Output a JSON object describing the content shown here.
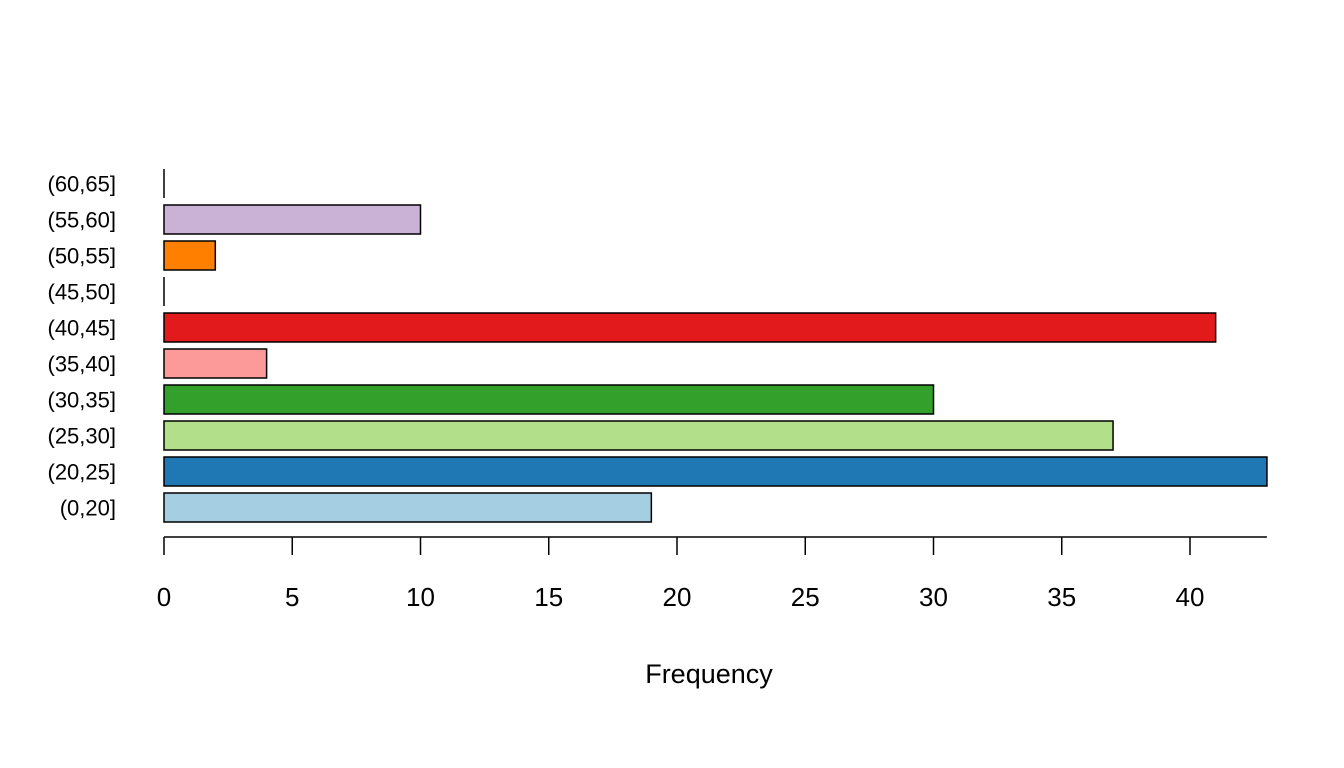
{
  "chart_data": {
    "type": "bar",
    "orientation": "horizontal",
    "title": "",
    "xlabel": "Frequency",
    "ylabel": "",
    "categories": [
      "(0,20]",
      "(20,25]",
      "(25,30]",
      "(30,35]",
      "(35,40]",
      "(40,45]",
      "(45,50]",
      "(50,55]",
      "(55,60]",
      "(60,65]"
    ],
    "values": [
      19,
      43,
      37,
      30,
      4,
      41,
      0,
      2,
      10,
      0
    ],
    "colors": [
      "#A6CEE3",
      "#1F78B4",
      "#B2DF8A",
      "#33A02C",
      "#FB9A99",
      "#E31A1C",
      "#FDBF6F",
      "#FF7F00",
      "#CAB2D6",
      "#6A3D9A"
    ],
    "xlim": [
      0,
      43
    ],
    "xticks": [
      0,
      5,
      10,
      15,
      20,
      25,
      30,
      35,
      40
    ],
    "grid": false,
    "legend": "none"
  }
}
